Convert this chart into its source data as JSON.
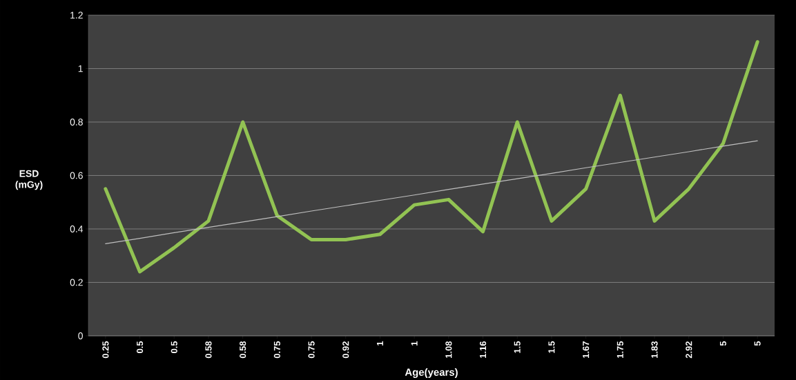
{
  "chart_data": {
    "type": "line",
    "xlabel": "Age(years)",
    "ylabel": "ESD (mGy)",
    "categories": [
      "0.25",
      "0.5",
      "0.5",
      "0.58",
      "0.58",
      "0.75",
      "0.75",
      "0.92",
      "1",
      "1",
      "1.08",
      "1.16",
      "1.5",
      "1.5",
      "1.67",
      "1.75",
      "1.83",
      "2.92",
      "5",
      "5"
    ],
    "series": [
      {
        "color": "#92c353",
        "values": [
          0.55,
          0.24,
          0.33,
          0.43,
          0.8,
          0.45,
          0.36,
          0.36,
          0.38,
          0.49,
          0.51,
          0.39,
          0.8,
          0.43,
          0.55,
          0.9,
          0.43,
          0.55,
          0.72,
          1.1
        ]
      },
      {
        "color": "#bfbfbf",
        "values": [
          0.345,
          0.365,
          0.386,
          0.406,
          0.426,
          0.446,
          0.467,
          0.487,
          0.507,
          0.527,
          0.548,
          0.568,
          0.588,
          0.608,
          0.629,
          0.649,
          0.669,
          0.689,
          0.71,
          0.73
        ]
      }
    ],
    "ylim": [
      0,
      1.2
    ],
    "yticks": [
      0,
      0.2,
      0.4,
      0.6,
      0.8,
      1,
      1.2
    ],
    "grid": "y",
    "marker": "none",
    "line_style": "solid"
  }
}
